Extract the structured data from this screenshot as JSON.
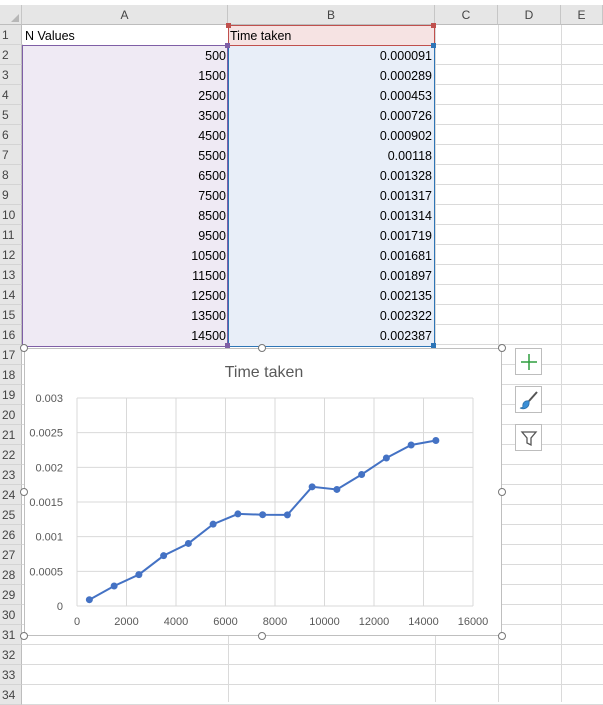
{
  "columns": [
    "A",
    "B",
    "C",
    "D",
    "E"
  ],
  "rows": [
    "1",
    "2",
    "3",
    "4",
    "5",
    "6",
    "7",
    "8",
    "9",
    "10",
    "11",
    "12",
    "13",
    "14",
    "15",
    "16",
    "17",
    "18",
    "19",
    "20",
    "21",
    "22",
    "23",
    "24",
    "25",
    "26",
    "27",
    "28",
    "29",
    "30",
    "31",
    "32",
    "33",
    "34"
  ],
  "table": {
    "header_a": "N Values",
    "header_b": "Time taken",
    "col_a": [
      "500",
      "1500",
      "2500",
      "3500",
      "4500",
      "5500",
      "6500",
      "7500",
      "8500",
      "9500",
      "10500",
      "11500",
      "12500",
      "13500",
      "14500"
    ],
    "col_b": [
      "0.000091",
      "0.000289",
      "0.000453",
      "0.000726",
      "0.000902",
      "0.00118",
      "0.001328",
      "0.001317",
      "0.001314",
      "0.001719",
      "0.001681",
      "0.001897",
      "0.002135",
      "0.002322",
      "0.002387"
    ]
  },
  "chart_data": {
    "type": "scatter",
    "title": "Time taken",
    "x": [
      500,
      1500,
      2500,
      3500,
      4500,
      5500,
      6500,
      7500,
      8500,
      9500,
      10500,
      11500,
      12500,
      13500,
      14500
    ],
    "series": [
      {
        "values": [
          9.1e-05,
          0.000289,
          0.000453,
          0.000726,
          0.000902,
          0.00118,
          0.001328,
          0.001317,
          0.001314,
          0.001719,
          0.001681,
          0.001897,
          0.002135,
          0.002322,
          0.002387
        ]
      }
    ],
    "xlim": [
      0,
      16000
    ],
    "ylim": [
      0,
      0.003
    ],
    "x_ticks": [
      "0",
      "2000",
      "4000",
      "6000",
      "8000",
      "10000",
      "12000",
      "14000",
      "16000"
    ],
    "y_ticks": [
      "0",
      "0.0005",
      "0.001",
      "0.0015",
      "0.002",
      "0.0025",
      "0.003"
    ],
    "grid": true,
    "line_color": "#4472c4"
  },
  "chart_tools": {
    "elements_icon": "plus-icon",
    "styles_icon": "paintbrush-icon",
    "filter_icon": "funnel-icon"
  },
  "colors": {
    "selection_a": "#7f5fa6",
    "selection_b": "#2e75b6",
    "header_b": "#c0504d"
  }
}
